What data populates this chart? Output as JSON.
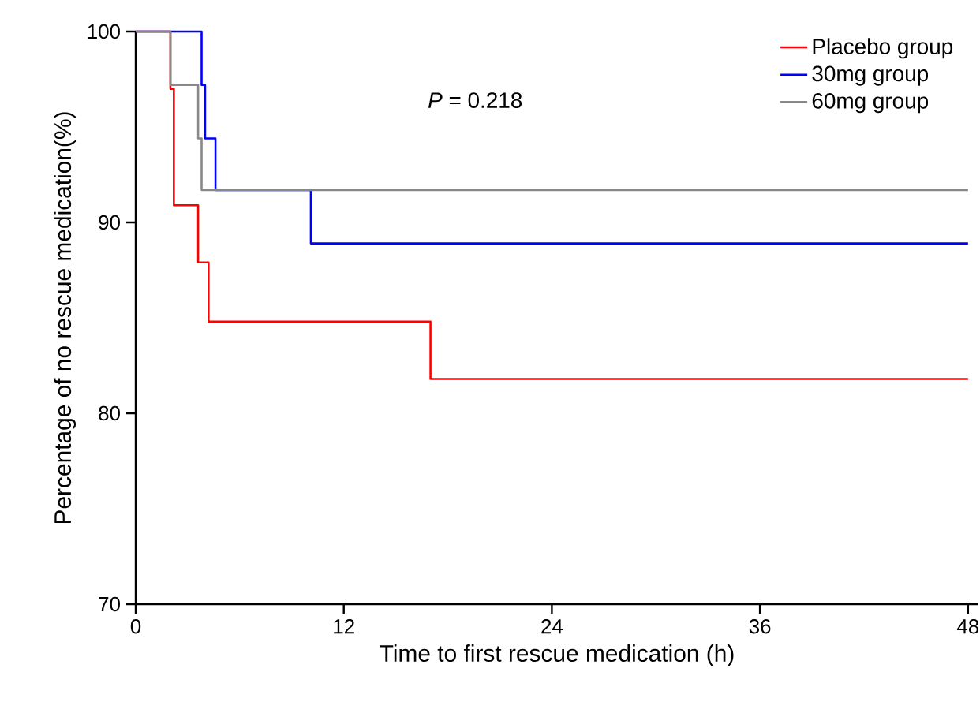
{
  "chart_data": {
    "type": "step",
    "xlabel": "Time to first rescue medication (h)",
    "ylabel": "Percentage of no rescue medication(%)",
    "annotations": [
      "*P* = 0.218"
    ],
    "xlim": [
      0,
      48.6
    ],
    "ylim": [
      70,
      100
    ],
    "xticks": [
      0,
      12,
      24,
      36,
      48
    ],
    "yticks": [
      70,
      80,
      90,
      100
    ],
    "grid": false,
    "legend": "top right",
    "series": [
      {
        "name": "Placebo group",
        "color": "#ff0000",
        "x": [
          0,
          2,
          2.2,
          3.6,
          4.2,
          17,
          48
        ],
        "values": [
          100,
          97,
          90.9,
          87.9,
          84.8,
          81.8,
          81.8
        ]
      },
      {
        "name": "30mg group",
        "color": "#0000ff",
        "x": [
          0,
          3.8,
          4.0,
          4.6,
          10.1,
          48
        ],
        "values": [
          100,
          97.2,
          94.4,
          91.7,
          88.9,
          88.9
        ]
      },
      {
        "name": "60mg group",
        "color": "#888888",
        "x": [
          0,
          2.0,
          3.6,
          3.8,
          48
        ],
        "values": [
          100,
          97.2,
          94.4,
          91.7,
          91.7
        ]
      }
    ]
  }
}
